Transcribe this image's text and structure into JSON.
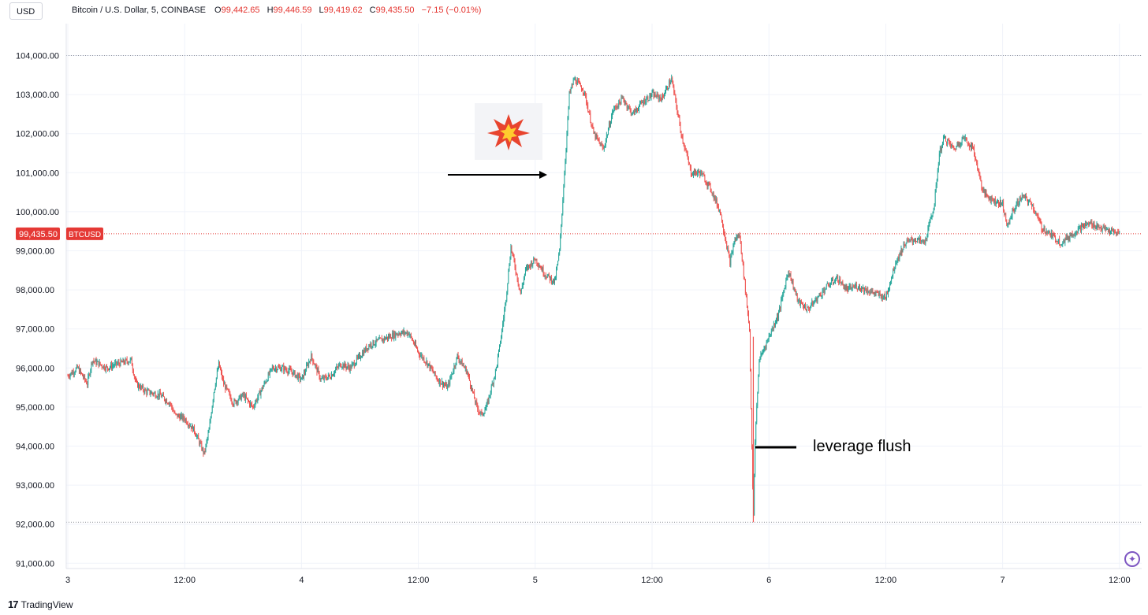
{
  "toolbar": {
    "currency": "USD"
  },
  "legend": {
    "symbol": "Bitcoin / U.S. Dollar, 5, COINBASE",
    "o_label": "O",
    "o_value": "99,442.65",
    "h_label": "H",
    "h_value": "99,446.59",
    "l_label": "L",
    "l_value": "99,419.62",
    "c_label": "C",
    "c_value": "99,435.50",
    "change": "−7.15 (−0.01%)"
  },
  "annotation": {
    "text": "leverage flush"
  },
  "footer": {
    "brand": "TradingView",
    "logo_glyph": "17"
  },
  "colors": {
    "up": "#26a69a",
    "down": "#ef5350",
    "last_price": "#e53935",
    "grid": "#f0f3fa",
    "accent": "#7e57c2"
  },
  "chart_data": {
    "type": "line",
    "title": "Bitcoin / U.S. Dollar, 5, COINBASE",
    "series_style": "candlestick",
    "ylim": [
      91000,
      104000
    ],
    "y_ticks": [
      "104,000.00",
      "103,000.00",
      "102,000.00",
      "101,000.00",
      "100,000.00",
      "99,000.00",
      "98,000.00",
      "97,000.00",
      "96,000.00",
      "95,000.00",
      "94,000.00",
      "93,000.00",
      "92,000.00",
      "91,000.00"
    ],
    "y_tick_values": [
      104000,
      103000,
      102000,
      101000,
      100000,
      99000,
      98000,
      97000,
      96000,
      95000,
      94000,
      93000,
      92000,
      91000
    ],
    "x_ticks": [
      "3",
      "12:00",
      "4",
      "12:00",
      "5",
      "12:00",
      "6",
      "12:00",
      "7",
      "12:00"
    ],
    "x_tick_hours": [
      0,
      12,
      24,
      36,
      48,
      60,
      72,
      84,
      96,
      108
    ],
    "last_price": {
      "value": 99435.5,
      "label": "99,435.50",
      "symbol": "BTCUSD"
    },
    "hlines": [
      104000,
      92050
    ],
    "points": [
      [
        0,
        95800
      ],
      [
        1,
        96000
      ],
      [
        2,
        95600
      ],
      [
        2.5,
        96200
      ],
      [
        4,
        96000
      ],
      [
        5,
        96100
      ],
      [
        6.5,
        96200
      ],
      [
        7,
        95600
      ],
      [
        8,
        95400
      ],
      [
        9.5,
        95300
      ],
      [
        10.5,
        95100
      ],
      [
        11,
        94800
      ],
      [
        12,
        94700
      ],
      [
        13,
        94400
      ],
      [
        14,
        93800
      ],
      [
        14.5,
        94400
      ],
      [
        15,
        95400
      ],
      [
        15.5,
        96100
      ],
      [
        16,
        95600
      ],
      [
        17,
        95100
      ],
      [
        18,
        95300
      ],
      [
        19,
        95000
      ],
      [
        20,
        95500
      ],
      [
        21,
        96000
      ],
      [
        22,
        96000
      ],
      [
        23,
        95900
      ],
      [
        24,
        95700
      ],
      [
        25,
        96300
      ],
      [
        26,
        95700
      ],
      [
        27,
        95800
      ],
      [
        28,
        96100
      ],
      [
        29,
        96000
      ],
      [
        30,
        96300
      ],
      [
        31,
        96600
      ],
      [
        32,
        96700
      ],
      [
        33,
        96800
      ],
      [
        34,
        96900
      ],
      [
        35,
        96900
      ],
      [
        36,
        96400
      ],
      [
        37,
        96100
      ],
      [
        38,
        95700
      ],
      [
        39,
        95500
      ],
      [
        40,
        96300
      ],
      [
        41,
        95900
      ],
      [
        42,
        95000
      ],
      [
        42.5,
        94800
      ],
      [
        43,
        95000
      ],
      [
        44,
        96000
      ],
      [
        44.5,
        96800
      ],
      [
        45,
        97800
      ],
      [
        45.5,
        99100
      ],
      [
        46,
        98500
      ],
      [
        46.5,
        97900
      ],
      [
        47,
        98500
      ],
      [
        48,
        98800
      ],
      [
        49,
        98400
      ],
      [
        50,
        98200
      ],
      [
        50.5,
        99000
      ],
      [
        51,
        101000
      ],
      [
        51.5,
        103000
      ],
      [
        52,
        103400
      ],
      [
        53,
        103100
      ],
      [
        54,
        102000
      ],
      [
        55,
        101600
      ],
      [
        56,
        102600
      ],
      [
        57,
        102900
      ],
      [
        58,
        102500
      ],
      [
        59,
        102800
      ],
      [
        60,
        103000
      ],
      [
        61,
        102900
      ],
      [
        62,
        103400
      ],
      [
        63,
        102000
      ],
      [
        64,
        101000
      ],
      [
        65,
        101000
      ],
      [
        66,
        100600
      ],
      [
        67,
        100000
      ],
      [
        68,
        98700
      ],
      [
        68.5,
        99300
      ],
      [
        69,
        99400
      ],
      [
        70,
        97000
      ],
      [
        70.2,
        94600
      ],
      [
        70.4,
        92050
      ],
      [
        70.6,
        94300
      ],
      [
        71,
        96200
      ],
      [
        72,
        96800
      ],
      [
        73,
        97400
      ],
      [
        74,
        98500
      ],
      [
        75,
        97700
      ],
      [
        76,
        97500
      ],
      [
        77,
        97800
      ],
      [
        78,
        98100
      ],
      [
        79,
        98300
      ],
      [
        80,
        98000
      ],
      [
        81,
        98100
      ],
      [
        82,
        98000
      ],
      [
        83,
        97900
      ],
      [
        84,
        97800
      ],
      [
        85,
        98700
      ],
      [
        86,
        99200
      ],
      [
        87,
        99300
      ],
      [
        88,
        99200
      ],
      [
        89,
        100200
      ],
      [
        89.5,
        101500
      ],
      [
        90,
        101900
      ],
      [
        91,
        101600
      ],
      [
        92,
        101900
      ],
      [
        93,
        101600
      ],
      [
        94,
        100500
      ],
      [
        95,
        100300
      ],
      [
        96,
        100200
      ],
      [
        96.5,
        99600
      ],
      [
        97,
        100000
      ],
      [
        98,
        100400
      ],
      [
        99,
        100200
      ],
      [
        100,
        99600
      ],
      [
        101,
        99400
      ],
      [
        102,
        99200
      ],
      [
        103,
        99400
      ],
      [
        104,
        99600
      ],
      [
        105,
        99700
      ],
      [
        106,
        99600
      ],
      [
        107,
        99500
      ],
      [
        108,
        99435.5
      ]
    ]
  }
}
